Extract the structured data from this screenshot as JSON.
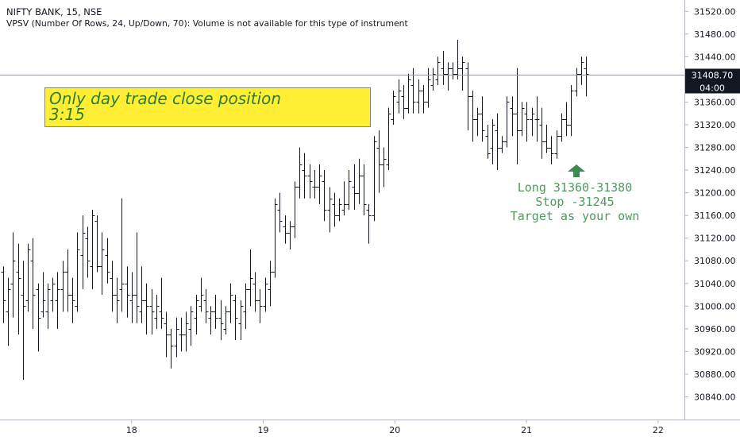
{
  "header": {
    "symbol_line": "NIFTY BANK, 15, NSE",
    "indicator_line": "VPSV (Number Of Rows, 24, Up/Down, 70): Volume is not available for this type of instrument"
  },
  "note_box": {
    "line1": "Only day trade close position",
    "line2": "3:15",
    "bg_color": "#ffee33",
    "text_color": "#2e7d32"
  },
  "trade_annotation": {
    "line1": "Long 31360-31380",
    "line2": "Stop -31245",
    "line3": "Target as your own",
    "text_color": "#4e9a5e",
    "arrow_icon": "up-arrow-icon",
    "arrow_color": "#3f8a52"
  },
  "price_marker": {
    "price": "31408.70",
    "countdown": "04:00",
    "bg_color": "#131722"
  },
  "chart_data": {
    "type": "ohlc",
    "title": "NIFTY BANK, 15, NSE",
    "ylim": [
      30800,
      31540
    ],
    "xlim": [
      17.0,
      22.2
    ],
    "y_ticks": [
      "31520.00",
      "31480.00",
      "31440.00",
      "31400.00",
      "31360.00",
      "31320.00",
      "31280.00",
      "31240.00",
      "31200.00",
      "31160.00",
      "31120.00",
      "31080.00",
      "31040.00",
      "31000.00",
      "30960.00",
      "30920.00",
      "30880.00",
      "30840.00"
    ],
    "x_ticks": [
      {
        "label": "18",
        "x": 18
      },
      {
        "label": "19",
        "x": 19
      },
      {
        "label": "20",
        "x": 20
      },
      {
        "label": "21",
        "x": 21
      },
      {
        "label": "22",
        "x": 22
      }
    ],
    "last_price": 31408.7,
    "grid": false,
    "bars": [
      [
        31060,
        31070,
        30970,
        31010
      ],
      [
        30990,
        31050,
        30930,
        31030
      ],
      [
        31040,
        31130,
        30980,
        31080
      ],
      [
        31060,
        31110,
        30950,
        31050
      ],
      [
        31020,
        31080,
        30870,
        31000
      ],
      [
        31010,
        31110,
        30990,
        31100
      ],
      [
        31080,
        31120,
        30960,
        31020
      ],
      [
        31030,
        31040,
        30920,
        30980
      ],
      [
        30990,
        31060,
        30980,
        31010
      ],
      [
        30990,
        31040,
        30960,
        31030
      ],
      [
        31010,
        31050,
        30990,
        31040
      ],
      [
        31010,
        31060,
        30960,
        31030
      ],
      [
        31030,
        31080,
        30990,
        31060
      ],
      [
        31060,
        31100,
        30990,
        31020
      ],
      [
        31020,
        31050,
        30970,
        31010
      ],
      [
        31000,
        31130,
        30990,
        31100
      ],
      [
        31090,
        31160,
        31030,
        31130
      ],
      [
        31120,
        31140,
        31050,
        31080
      ],
      [
        31070,
        31170,
        31030,
        31160
      ],
      [
        31150,
        31160,
        31060,
        31070
      ],
      [
        31070,
        31130,
        31020,
        31100
      ],
      [
        31090,
        31120,
        31040,
        31060
      ],
      [
        31050,
        31080,
        30990,
        31020
      ],
      [
        31020,
        31050,
        30970,
        31010
      ],
      [
        31030,
        31190,
        30990,
        31040
      ],
      [
        31040,
        31070,
        30980,
        31020
      ],
      [
        31010,
        31060,
        30970,
        31020
      ],
      [
        31020,
        31130,
        30970,
        31000
      ],
      [
        30990,
        31070,
        30970,
        31010
      ],
      [
        31010,
        31040,
        30950,
        31000
      ],
      [
        31000,
        31030,
        30950,
        30990
      ],
      [
        30980,
        31020,
        30960,
        31000
      ],
      [
        30990,
        31050,
        30960,
        30980
      ],
      [
        30970,
        30990,
        30910,
        30950
      ],
      [
        30950,
        30960,
        30890,
        30930
      ],
      [
        30930,
        30980,
        30910,
        30960
      ],
      [
        30950,
        30980,
        30920,
        30950
      ],
      [
        30950,
        30990,
        30920,
        30970
      ],
      [
        30960,
        31000,
        30930,
        30990
      ],
      [
        30980,
        31020,
        30950,
        31010
      ],
      [
        31000,
        31050,
        30990,
        31020
      ],
      [
        31010,
        31030,
        30970,
        30990
      ],
      [
        30980,
        31000,
        30950,
        30990
      ],
      [
        30990,
        31020,
        30960,
        30980
      ],
      [
        30980,
        31010,
        30940,
        30970
      ],
      [
        30960,
        31000,
        30950,
        30990
      ],
      [
        30990,
        31040,
        30970,
        31020
      ],
      [
        31010,
        31020,
        30940,
        30980
      ],
      [
        30970,
        31010,
        30940,
        31000
      ],
      [
        30990,
        31040,
        30960,
        31030
      ],
      [
        31030,
        31100,
        31000,
        31050
      ],
      [
        31040,
        31060,
        30990,
        31010
      ],
      [
        31010,
        31030,
        30970,
        31000
      ],
      [
        31000,
        31050,
        30990,
        31040
      ],
      [
        31030,
        31080,
        31000,
        31060
      ],
      [
        31060,
        31190,
        31050,
        31180
      ],
      [
        31170,
        31200,
        31130,
        31150
      ],
      [
        31140,
        31160,
        31110,
        31130
      ],
      [
        31130,
        31150,
        31100,
        31140
      ],
      [
        31140,
        31220,
        31120,
        31210
      ],
      [
        31210,
        31280,
        31190,
        31250
      ],
      [
        31240,
        31270,
        31190,
        31230
      ],
      [
        31230,
        31250,
        31190,
        31220
      ],
      [
        31210,
        31240,
        31190,
        31210
      ],
      [
        31210,
        31250,
        31180,
        31230
      ],
      [
        31220,
        31240,
        31150,
        31170
      ],
      [
        31170,
        31210,
        31130,
        31190
      ],
      [
        31180,
        31200,
        31140,
        31160
      ],
      [
        31160,
        31190,
        31150,
        31180
      ],
      [
        31170,
        31220,
        31160,
        31180
      ],
      [
        31180,
        31240,
        31170,
        31220
      ],
      [
        31210,
        31250,
        31170,
        31200
      ],
      [
        31200,
        31260,
        31180,
        31230
      ],
      [
        31230,
        31250,
        31160,
        31180
      ],
      [
        31170,
        31180,
        31110,
        31160
      ],
      [
        31160,
        31300,
        31150,
        31290
      ],
      [
        31280,
        31310,
        31200,
        31250
      ],
      [
        31250,
        31280,
        31210,
        31260
      ],
      [
        31250,
        31350,
        31240,
        31340
      ],
      [
        31330,
        31380,
        31320,
        31370
      ],
      [
        31360,
        31400,
        31340,
        31380
      ],
      [
        31370,
        31390,
        31330,
        31350
      ],
      [
        31350,
        31410,
        31340,
        31400
      ],
      [
        31390,
        31420,
        31340,
        31360
      ],
      [
        31360,
        31400,
        31340,
        31380
      ],
      [
        31380,
        31390,
        31340,
        31360
      ],
      [
        31360,
        31420,
        31350,
        31400
      ],
      [
        31390,
        31420,
        31380,
        31410
      ],
      [
        31400,
        31440,
        31390,
        31430
      ],
      [
        31420,
        31450,
        31390,
        31410
      ],
      [
        31410,
        31430,
        31380,
        31420
      ],
      [
        31420,
        31430,
        31400,
        31410
      ],
      [
        31410,
        31470,
        31400,
        31420
      ],
      [
        31420,
        31440,
        31380,
        31430
      ],
      [
        31420,
        31430,
        31310,
        31370
      ],
      [
        31370,
        31380,
        31290,
        31330
      ],
      [
        31330,
        31350,
        31300,
        31340
      ],
      [
        31340,
        31370,
        31290,
        31310
      ],
      [
        31300,
        31320,
        31260,
        31270
      ],
      [
        31280,
        31330,
        31250,
        31320
      ],
      [
        31310,
        31340,
        31240,
        31280
      ],
      [
        31280,
        31300,
        31270,
        31290
      ],
      [
        31290,
        31370,
        31280,
        31360
      ],
      [
        31350,
        31370,
        31300,
        31340
      ],
      [
        31340,
        31420,
        31250,
        31310
      ],
      [
        31310,
        31360,
        31300,
        31350
      ],
      [
        31340,
        31360,
        31290,
        31330
      ],
      [
        31330,
        31350,
        31300,
        31340
      ],
      [
        31330,
        31370,
        31290,
        31330
      ],
      [
        31320,
        31350,
        31260,
        31290
      ],
      [
        31290,
        31320,
        31270,
        31280
      ],
      [
        31280,
        31300,
        31250,
        31270
      ],
      [
        31270,
        31310,
        31260,
        31300
      ],
      [
        31300,
        31340,
        31290,
        31330
      ],
      [
        31330,
        31360,
        31300,
        31320
      ],
      [
        31320,
        31390,
        31300,
        31380
      ],
      [
        31380,
        31420,
        31370,
        31410
      ],
      [
        31410,
        31440,
        31390,
        31430
      ],
      [
        31420,
        31440,
        31370,
        31410
      ]
    ]
  }
}
